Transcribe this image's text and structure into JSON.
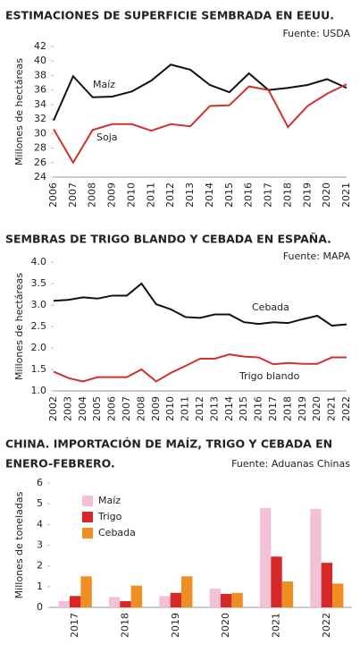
{
  "chart_data": [
    {
      "type": "line",
      "title": "ESTIMACIONES DE SUPERFICIE SEMBRADA EN EEUU.",
      "source": "Fuente: USDA",
      "y_label": "Millones de hectáreas",
      "categories": [
        "2006",
        "2007",
        "2008",
        "2009",
        "2010",
        "2011",
        "2012",
        "2013",
        "2014",
        "2015",
        "2016",
        "2017",
        "2018",
        "2019",
        "2020",
        "2021"
      ],
      "series": [
        {
          "name": "Maíz",
          "color": "#111111",
          "values": [
            31.8,
            37.9,
            35.0,
            35.1,
            35.8,
            37.3,
            39.5,
            38.8,
            36.7,
            35.7,
            38.3,
            36.0,
            36.3,
            36.7,
            37.5,
            36.3
          ]
        },
        {
          "name": "Soja",
          "color": "#d0312d",
          "values": [
            30.6,
            26.0,
            30.5,
            31.3,
            31.3,
            30.4,
            31.3,
            31.0,
            33.8,
            33.9,
            36.5,
            36.0,
            30.9,
            33.8,
            35.5,
            36.8
          ]
        }
      ],
      "ylim": [
        24,
        42
      ],
      "yticks": [
        24,
        26,
        28,
        30,
        32,
        34,
        36,
        38,
        40,
        42
      ]
    },
    {
      "type": "line",
      "title": "SEMBRAS DE TRIGO BLANDO Y CEBADA EN ESPAÑA.",
      "source": "Fuente: MAPA",
      "y_label": "Millones de hectáreas",
      "categories": [
        "2002",
        "2003",
        "2004",
        "2005",
        "2006",
        "2007",
        "2008",
        "2009",
        "2010",
        "2011",
        "2012",
        "2013",
        "2014",
        "2015",
        "2016",
        "2017",
        "2018",
        "2019",
        "2020",
        "2021",
        "2022"
      ],
      "series": [
        {
          "name": "Cebada",
          "color": "#111111",
          "values": [
            3.1,
            3.12,
            3.18,
            3.15,
            3.22,
            3.22,
            3.5,
            3.02,
            2.9,
            2.72,
            2.7,
            2.78,
            2.78,
            2.6,
            2.56,
            2.6,
            2.58,
            2.67,
            2.75,
            2.52,
            2.55
          ]
        },
        {
          "name": "Trigo blando",
          "color": "#d0312d",
          "values": [
            1.45,
            1.3,
            1.22,
            1.32,
            1.32,
            1.32,
            1.5,
            1.22,
            1.42,
            1.58,
            1.75,
            1.75,
            1.85,
            1.8,
            1.78,
            1.62,
            1.65,
            1.63,
            1.63,
            1.78,
            1.78
          ]
        }
      ],
      "ylim": [
        1.0,
        4.0
      ],
      "yticks": [
        {
          "value": 1.0,
          "label": "1.0"
        },
        1.5,
        {
          "value": 2.0,
          "label": "2.0"
        },
        2.5,
        {
          "value": 3.0,
          "label": "3.0"
        },
        3.5,
        {
          "value": 4.0,
          "label": "4.0"
        }
      ]
    },
    {
      "type": "bar",
      "title": [
        "CHINA. IMPORTACIÓN DE MAÍZ, TRIGO Y CEBADA EN",
        "ENERO-FEBRERO."
      ],
      "source": "Fuente: Aduanas Chinas",
      "y_label": "Millones de toneladas",
      "categories": [
        "2017",
        "2018",
        "2019",
        "2020",
        "2021",
        "2022"
      ],
      "series": [
        {
          "name": "Maíz",
          "color": "#f2c1d6",
          "values": [
            0.3,
            0.5,
            0.55,
            0.9,
            4.8,
            4.75
          ]
        },
        {
          "name": "Trigo",
          "color": "#d62828",
          "values": [
            0.55,
            0.3,
            0.7,
            0.65,
            2.45,
            2.15
          ]
        },
        {
          "name": "Cebada",
          "color": "#ef8e22",
          "values": [
            1.5,
            1.05,
            1.5,
            0.7,
            1.25,
            1.15
          ]
        }
      ],
      "ylim": [
        0,
        6
      ],
      "yticks": [
        0,
        1,
        2,
        3,
        4,
        5,
        6
      ]
    }
  ]
}
